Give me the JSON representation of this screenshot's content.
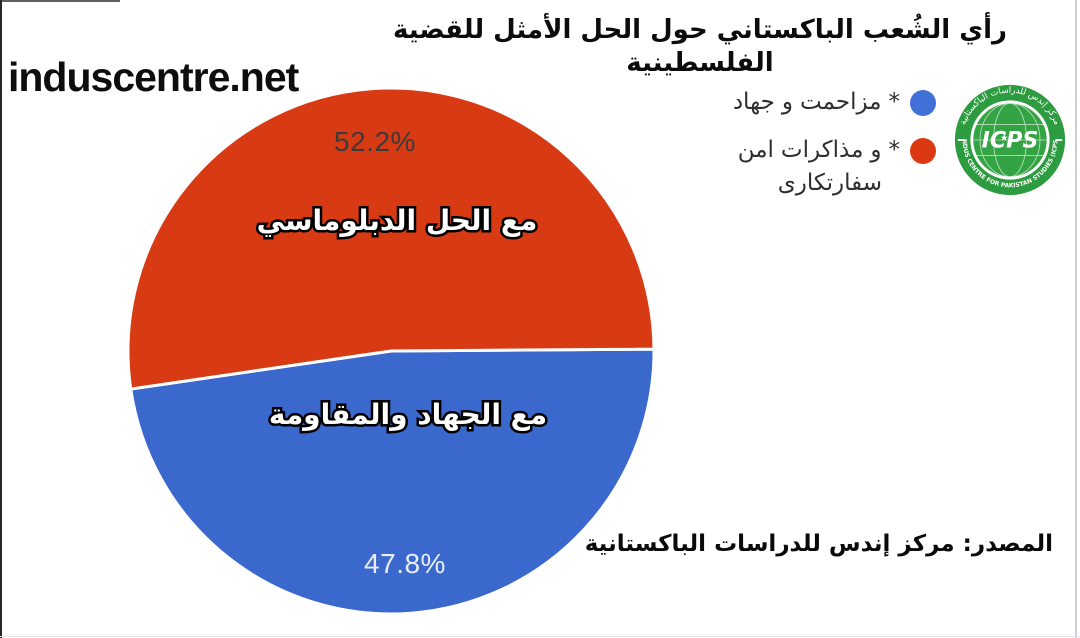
{
  "window": {
    "watermark": "induscentre.net"
  },
  "header": {
    "title": "رأي الشُعب الباكستاني حول الحل الأمثل للقضية الفلسطينية"
  },
  "legend": {
    "items": [
      {
        "color": "#4170d8",
        "lines": [
          "جهاد و مزاحمت *"
        ]
      },
      {
        "color": "#dc3912",
        "lines": [
          "امن مذاكرات و *",
          "سفارتكارى"
        ]
      }
    ]
  },
  "chart_data": {
    "type": "pie",
    "title": "رأي الشُعب الباكستاني حول الحل الأمثل للقضية الفلسطينية",
    "legend_position": "right",
    "rotation_deg_start": -0.4,
    "slices": [
      {
        "legend_label": "جهاد و مزاحمت *",
        "overlay_caption": "مع الجهاد والمقاومة",
        "value_pct": 47.8,
        "color": "#3b68cd",
        "pct_text_color": "#e8edf7"
      },
      {
        "legend_label": "امن مذاكرات و * سفارتكارى",
        "overlay_caption": "مع الحل الدبلوماسي",
        "value_pct": 52.2,
        "color": "#d83a14",
        "pct_text_color": "#3e3a39"
      }
    ]
  },
  "source_note": "المصدر: مركز إندس للدراسات الباكستانية",
  "logo": {
    "center_text": "ICPS",
    "top_arc_text": "مركز إندس للدراسات الباكستانية",
    "bottom_arc_text": "INDUS CENTRE FOR PAKISTAN STUDIES (ICPS)"
  }
}
